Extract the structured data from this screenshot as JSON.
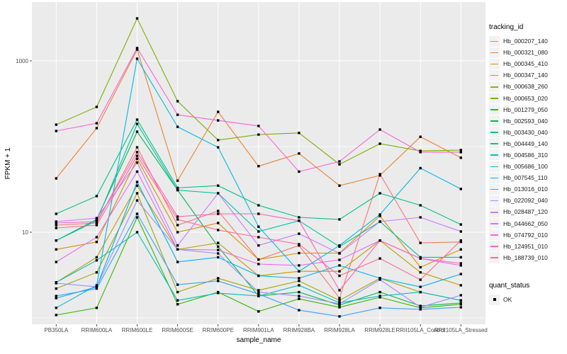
{
  "chart_data": {
    "type": "line",
    "title": "",
    "xlabel": "sample_name",
    "ylabel": "FPKM + 1",
    "y_scale": "log10",
    "y_tick_labels": [
      "1000",
      "10"
    ],
    "y_tick_values": [
      1000,
      10
    ],
    "y_gridline_values": [
      1,
      10,
      100,
      1000
    ],
    "ylim_approx": [
      0.85,
      4900
    ],
    "grid": true,
    "legend_position": "right",
    "categories": [
      "PB350LA",
      "RRIM600LA",
      "RRIM600LE",
      "RRIM600SE",
      "RRIM600PE",
      "RRIM901LA",
      "RRIM928BA",
      "RRIM928LA",
      "RRIM928LE",
      "RRII105LA_Control",
      "RRII105LA_Stressed"
    ],
    "series": [
      {
        "name": "Hb_000207_140",
        "color": "#F8766D",
        "values": [
          12.1,
          12.8,
          98,
          12.1,
          17.7,
          4.8,
          7.0,
          1.7,
          47.6,
          7.5,
          7.7
        ]
      },
      {
        "name": "Hb_000321_080",
        "color": "#EA8331",
        "values": [
          42.5,
          164,
          1355,
          40,
          254,
          59,
          83,
          35,
          46,
          130,
          74
        ]
      },
      {
        "name": "Hb_000345_410",
        "color": "#D89000",
        "values": [
          6.3,
          7.7,
          72,
          10,
          12.8,
          4.8,
          5.7,
          5.7,
          15.5,
          3.9,
          6.3
        ]
      },
      {
        "name": "Hb_000347_140",
        "color": "#C09B00",
        "values": [
          2.6,
          5.1,
          35,
          6.3,
          7.5,
          3.1,
          3.5,
          3.5,
          8.0,
          3.4,
          2.4
        ]
      },
      {
        "name": "Hb_000638_260",
        "color": "#A3A500",
        "values": [
          2.2,
          3.4,
          28.5,
          2.0,
          2.9,
          2.1,
          2.7,
          1.6,
          2.9,
          2.0,
          1.6
        ]
      },
      {
        "name": "Hb_000653_020",
        "color": "#7CAE00",
        "values": [
          180,
          290,
          3130,
          338,
          119,
          138,
          144,
          62,
          108,
          89,
          91
        ]
      },
      {
        "name": "Hb_001279_050",
        "color": "#39B600",
        "values": [
          1.08,
          1.31,
          14.9,
          1.44,
          2.0,
          1.19,
          1.67,
          1.33,
          1.74,
          1.31,
          1.44
        ]
      },
      {
        "name": "Hb_002593_040",
        "color": "#00BB4E",
        "values": [
          8.0,
          14.1,
          149,
          31,
          6.8,
          1.8,
          2.0,
          1.41,
          2.0,
          1.38,
          1.49
        ]
      },
      {
        "name": "Hb_003430_040",
        "color": "#00C087",
        "values": [
          16.4,
          26.4,
          206,
          33,
          35,
          20.6,
          14.9,
          14.1,
          28.5,
          20.6,
          12.3
        ]
      },
      {
        "name": "Hb_004449_140",
        "color": "#00C1A3",
        "values": [
          8.0,
          13.6,
          184,
          31,
          28.5,
          10.2,
          13.6,
          6.8,
          13.3,
          5.1,
          5.1
        ]
      },
      {
        "name": "Hb_004586_310",
        "color": "#00BFC4",
        "values": [
          2.6,
          4.7,
          10,
          1.6,
          1.95,
          1.8,
          2.4,
          1.5,
          1.8,
          2.0,
          1.6
        ]
      },
      {
        "name": "Hb_005686_100",
        "color": "#00BAE0",
        "values": [
          1.31,
          2.4,
          1060,
          170,
          98,
          11.6,
          3.5,
          7.0,
          16.1,
          56,
          32
        ]
      },
      {
        "name": "Hb_007545_110",
        "color": "#00B0F6",
        "values": [
          1.7,
          2.3,
          38.6,
          4.5,
          5.1,
          3.1,
          2.9,
          4.1,
          2.9,
          2.3,
          3.25
        ]
      },
      {
        "name": "Hb_013016_010",
        "color": "#35A2FF",
        "values": [
          1.8,
          2.2,
          16.4,
          2.44,
          2.7,
          1.9,
          1.23,
          1.04,
          1.31,
          1.26,
          1.33
        ]
      },
      {
        "name": "Hb_022092_040",
        "color": "#9590FF",
        "values": [
          2.54,
          2.31,
          23.5,
          6.3,
          5.65,
          2.0,
          1.8,
          1.46,
          2.8,
          1.33,
          1.84
        ]
      },
      {
        "name": "Hb_028487_120",
        "color": "#C77CFF",
        "values": [
          13.3,
          14.6,
          65,
          7.0,
          28.5,
          7.0,
          9.6,
          5.65,
          13.3,
          14.9,
          10.2
        ]
      },
      {
        "name": "Hb_044662_050",
        "color": "#E76BF3",
        "values": [
          4.5,
          8.75,
          51,
          6.3,
          6.2,
          4.25,
          4.1,
          4.76,
          8.0,
          4.94,
          4.1
        ]
      },
      {
        "name": "Hb_074792_010",
        "color": "#FA62DB",
        "values": [
          152,
          187,
          1410,
          235,
          202,
          174,
          51,
          67,
          158,
          86,
          86
        ]
      },
      {
        "name": "Hb_124951_010",
        "color": "#FF62BC",
        "values": [
          12.8,
          13.3,
          86,
          15.2,
          16.4,
          16.4,
          13.6,
          2.1,
          8.0,
          4.94,
          4.33
        ]
      },
      {
        "name": "Hb_188739_010",
        "color": "#FF6A98",
        "values": [
          11.2,
          12.1,
          78,
          14.1,
          10.6,
          8.75,
          7.24,
          3.1,
          4.94,
          2.79,
          8.0
        ]
      }
    ],
    "legend": {
      "title": "tracking_id"
    },
    "legend2": {
      "title": "quant_status",
      "items": [
        {
          "label": "OK",
          "marker": "black-square"
        }
      ]
    },
    "point_marker": "black-square"
  },
  "colors": {
    "panel_bg": "#EBEBEB",
    "gridline": "#FFFFFF",
    "tick_label": "#4D4D4D",
    "axis_title": "#000000",
    "legend_key_bg": "#F2F2F2",
    "point": "#000000"
  }
}
